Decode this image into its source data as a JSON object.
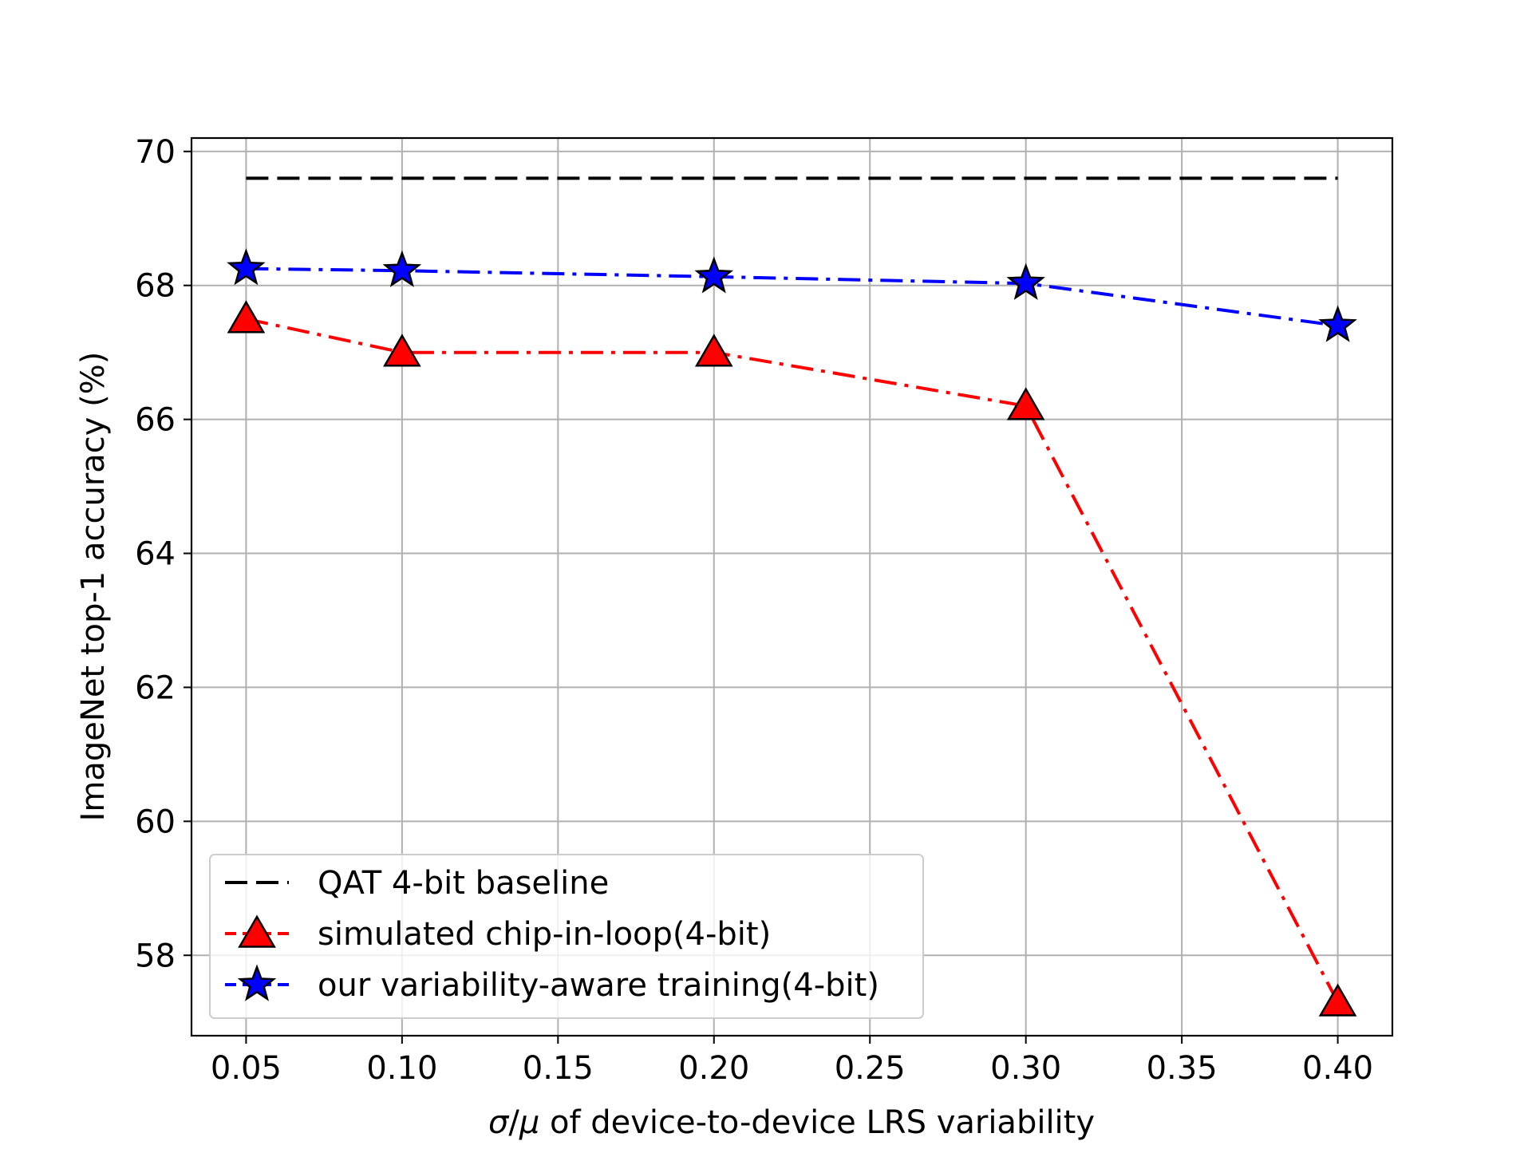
{
  "chart_data": {
    "type": "line",
    "title": "",
    "xlabel": {
      "sym1": "σ",
      "sep": "/",
      "sym2": "μ",
      "rest": " of device-to-device LRS variability"
    },
    "ylabel": "ImageNet top-1 accuracy (%)",
    "xlim": [
      0.0325,
      0.4175
    ],
    "ylim": [
      56.8,
      70.2
    ],
    "xticks": [
      0.05,
      0.1,
      0.15,
      0.2,
      0.25,
      0.3,
      0.35,
      0.4
    ],
    "xtick_labels": [
      "0.05",
      "0.10",
      "0.15",
      "0.20",
      "0.25",
      "0.30",
      "0.35",
      "0.40"
    ],
    "yticks": [
      58,
      60,
      62,
      64,
      66,
      68,
      70
    ],
    "ytick_labels": [
      "58",
      "60",
      "62",
      "64",
      "66",
      "68",
      "70"
    ],
    "grid": true,
    "legend_position": "bottom-left",
    "series": [
      {
        "name": "QAT 4-bit baseline",
        "color": "#000000",
        "marker": "none",
        "dash": "dashed",
        "x": [
          0.05,
          0.4
        ],
        "y": [
          69.6,
          69.6
        ]
      },
      {
        "name": "simulated chip-in-loop(4-bit)",
        "color": "#ff0000",
        "marker": "triangle",
        "dash": "dashdot",
        "x": [
          0.05,
          0.1,
          0.2,
          0.3,
          0.4
        ],
        "y": [
          67.5,
          67.0,
          67.0,
          66.2,
          57.3
        ]
      },
      {
        "name": "our variability-aware training(4-bit)",
        "color": "#0000ff",
        "marker": "star",
        "dash": "dashdot",
        "x": [
          0.05,
          0.1,
          0.2,
          0.3,
          0.4
        ],
        "y": [
          68.25,
          68.22,
          68.13,
          68.03,
          67.4
        ]
      }
    ]
  }
}
